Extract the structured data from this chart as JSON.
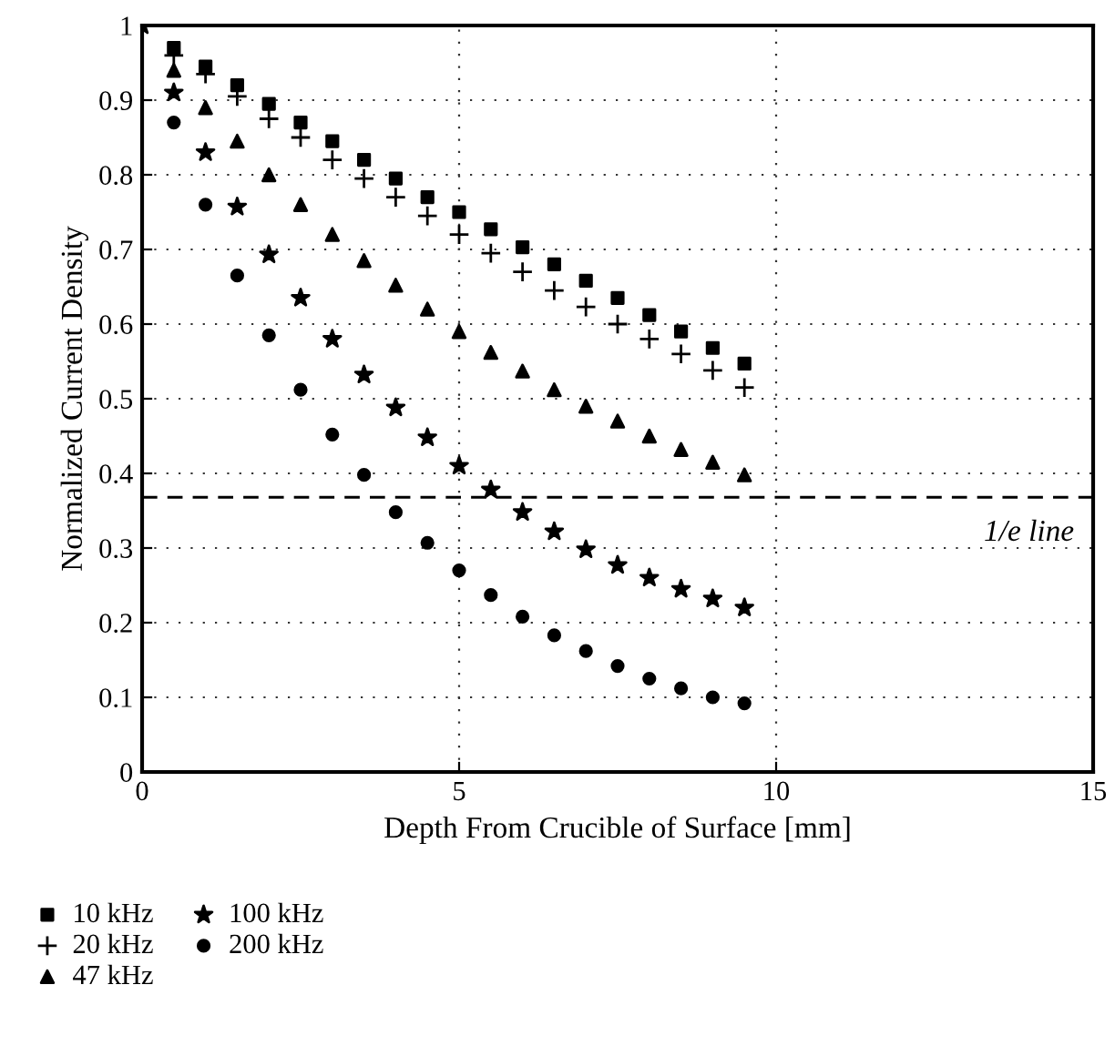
{
  "chart_data": {
    "type": "scatter",
    "xlabel": "Depth From Crucible of Surface [mm]",
    "ylabel": "Normalized Current Density",
    "x": [
      0,
      0.5,
      1,
      1.5,
      2,
      2.5,
      3,
      3.5,
      4,
      4.5,
      5,
      5.5,
      6,
      6.5,
      7,
      7.5,
      8,
      8.5,
      9,
      9.5
    ],
    "series": [
      {
        "name": "10 kHz",
        "color": "#000000",
        "marker": "square",
        "values": [
          null,
          0.97,
          0.945,
          0.92,
          0.895,
          0.87,
          0.845,
          0.82,
          0.795,
          0.77,
          0.75,
          0.727,
          0.703,
          0.68,
          0.658,
          0.635,
          0.612,
          0.59,
          0.568,
          0.547
        ]
      },
      {
        "name": "20 kHz",
        "color": "#000000",
        "marker": "cross",
        "values": [
          null,
          0.96,
          0.935,
          0.905,
          0.875,
          0.85,
          0.82,
          0.795,
          0.77,
          0.745,
          0.72,
          0.695,
          0.67,
          0.645,
          0.623,
          0.6,
          0.58,
          0.56,
          0.538,
          0.515
        ]
      },
      {
        "name": "47 kHz",
        "color": "#000000",
        "marker": "triangle",
        "values": [
          null,
          0.94,
          0.89,
          0.845,
          0.8,
          0.76,
          0.72,
          0.685,
          0.652,
          0.62,
          0.59,
          0.562,
          0.537,
          0.512,
          0.49,
          0.47,
          0.45,
          0.432,
          0.415,
          0.398
        ]
      },
      {
        "name": "100 kHz",
        "color": "#000000",
        "marker": "star",
        "values": [
          1,
          0.91,
          0.83,
          0.757,
          0.693,
          0.635,
          0.58,
          0.532,
          0.488,
          0.448,
          0.41,
          0.378,
          0.348,
          0.322,
          0.298,
          0.277,
          0.26,
          0.245,
          0.232,
          0.22
        ]
      },
      {
        "name": "200 kHz",
        "color": "#000000",
        "marker": "circle",
        "values": [
          null,
          0.87,
          0.76,
          0.665,
          0.585,
          0.512,
          0.452,
          0.398,
          0.348,
          0.307,
          0.27,
          0.237,
          0.208,
          0.183,
          0.162,
          0.142,
          0.125,
          0.112,
          0.1,
          0.092
        ]
      }
    ],
    "xlim": [
      0,
      15
    ],
    "xticks": [
      0,
      5,
      10,
      15
    ],
    "ylim": [
      0,
      1
    ],
    "yticks": [
      0,
      0.1,
      0.2,
      0.3,
      0.4,
      0.5,
      0.6,
      0.7,
      0.8,
      0.9,
      1
    ],
    "ref_lines": [
      {
        "axis": "y",
        "value": 0.368,
        "label": "1/e line",
        "color": "#000000",
        "line_style": "dashed"
      }
    ],
    "grid": true,
    "legend": "bottom"
  }
}
